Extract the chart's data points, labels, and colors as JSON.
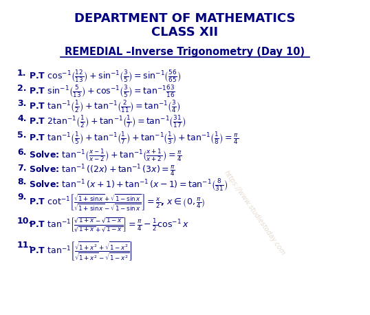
{
  "title1": "DEPARTMENT OF MATHEMATICS",
  "title2": "CLASS XII",
  "subtitle": "REMEDIAL –Inverse Trigonometry (Day 10)",
  "background_color": "#ffffff",
  "text_color": "#000080",
  "figsize": [
    5.38,
    4.58
  ],
  "dpi": 100
}
